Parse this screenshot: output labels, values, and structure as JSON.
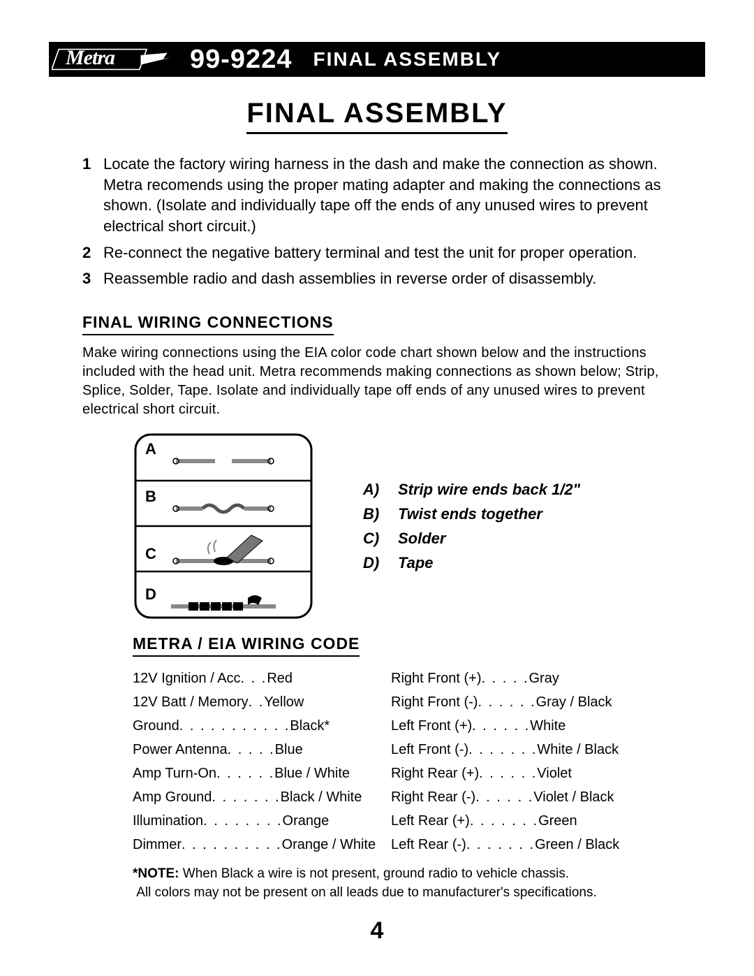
{
  "header": {
    "logo_text": "Metra",
    "product_number": "99-9224",
    "section_title": "FINAL ASSEMBLY"
  },
  "main_title": "FINAL ASSEMBLY",
  "steps": [
    {
      "num": "1",
      "text": "Locate the factory wiring harness in the dash and make the connection as shown. Metra recomends using the proper mating adapter and making the connections as shown. (Isolate and individually tape off the ends of any unused wires to prevent electrical short circuit.)"
    },
    {
      "num": "2",
      "text": "Re-connect the negative battery terminal and test the unit for proper operation."
    },
    {
      "num": "3",
      "text": "Reassemble radio and dash assemblies in reverse order of disassembly."
    }
  ],
  "wiring_section": {
    "heading": "FINAL WIRING CONNECTIONS",
    "paragraph": "Make wiring connections using the EIA color code chart shown below and the instructions included with the head unit. Metra recommends making connections as shown below; Strip, Splice, Solder, Tape. Isolate and individually tape off ends of any unused wires to prevent electrical short circuit."
  },
  "diagram_legend": [
    {
      "key": "A)",
      "text": "Strip wire ends back 1/2\""
    },
    {
      "key": "B)",
      "text": "Twist ends together"
    },
    {
      "key": "C)",
      "text": "Solder"
    },
    {
      "key": "D)",
      "text": "Tape"
    }
  ],
  "diagram_labels": {
    "a": "A",
    "b": "B",
    "c": "C",
    "d": "D"
  },
  "wiring_code": {
    "heading": "METRA / EIA WIRING CODE",
    "left": [
      {
        "label": "12V Ignition / Acc",
        "dots": ". . .",
        "value": "Red"
      },
      {
        "label": "12V Batt / Memory",
        "dots": ". .",
        "value": "Yellow"
      },
      {
        "label": "Ground",
        "dots": ". . . . . . . . . . .",
        "value": "Black*"
      },
      {
        "label": "Power Antenna",
        "dots": ". . . . .",
        "value": "Blue"
      },
      {
        "label": "Amp Turn-On",
        "dots": " . . . . . .",
        "value": "Blue / White"
      },
      {
        "label": "Amp Ground",
        "dots": ". . . . . . .",
        "value": "Black / White"
      },
      {
        "label": "Illumination",
        "dots": ". . . . . . . .",
        "value": "Orange"
      },
      {
        "label": "Dimmer",
        "dots": " . . . . . . . . . .",
        "value": "Orange / White"
      }
    ],
    "right": [
      {
        "label": "Right Front (+)",
        "dots": " . . . . .",
        "value": "Gray"
      },
      {
        "label": "Right Front (-)",
        "dots": ". . . . . .",
        "value": "Gray / Black"
      },
      {
        "label": "Left Front (+)",
        "dots": " . . . . . .",
        "value": "White"
      },
      {
        "label": "Left Front (-)",
        "dots": ". . . . . . .",
        "value": "White / Black"
      },
      {
        "label": "Right Rear (+)",
        "dots": ". . . . . .",
        "value": "Violet"
      },
      {
        "label": "Right Rear (-)",
        "dots": " . . . . . .",
        "value": "Violet / Black"
      },
      {
        "label": "Left Rear (+)",
        "dots": ". . . . . . .",
        "value": "Green"
      },
      {
        "label": "Left Rear (-)",
        "dots": " . . . . . . .",
        "value": "Green / Black"
      }
    ]
  },
  "note": {
    "label": "*NOTE:",
    "line1": " When Black a wire is not present, ground radio to vehicle chassis.",
    "line2": "All colors may not be present on all leads due to manufacturer's specifications."
  },
  "page_number": "4",
  "colors": {
    "bg": "#ffffff",
    "text": "#000000",
    "header_bg": "#000000",
    "header_text": "#ffffff"
  }
}
